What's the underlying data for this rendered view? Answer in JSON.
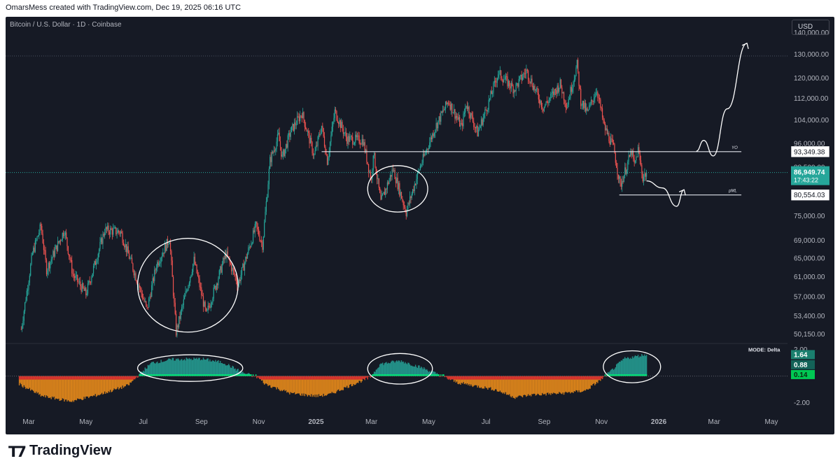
{
  "header": {
    "caption": "OmarsMess created with TradingView.com, Dec 19, 2025 06:16 UTC"
  },
  "chart": {
    "symbol": "Bitcoin / U.S. Dollar · 1D · Coinbase",
    "currency_button": "USD",
    "mode_label": "MODE: Delta",
    "yo_label": "YO",
    "pml_label": "pML",
    "countdown": "17:43:22"
  },
  "footer": {
    "brand": "TradingView"
  },
  "colors": {
    "background": "#161a25",
    "bull": "#26a69a",
    "bear": "#ef5350",
    "text": "#b2b5be",
    "delta_pos": "#26a69a",
    "delta_neg_top": "#d32f2f",
    "delta_neg_body": "#f7931a",
    "signal": "#00e676"
  },
  "chart_data": [
    {
      "type": "candlestick",
      "title": "Bitcoin / U.S. Dollar · 1D · Coinbase",
      "y_scale": "log",
      "ylim": [
        48700,
        146000
      ],
      "y_ticks": [
        50150,
        53400,
        57000,
        61000,
        65000,
        69000,
        75000,
        80500,
        88500,
        96000,
        104000,
        112000,
        120000,
        130000,
        140000
      ],
      "y_tick_labels": [
        "50,150.00",
        "53,400.00",
        "57,000.00",
        "61,000.00",
        "65,000.00",
        "69,000.00",
        "75,000.00",
        "80,500.00",
        "88,500.00",
        "96,000.00",
        "104,000.00",
        "112,000.00",
        "120,000.00",
        "130,000.00",
        "140,000.00"
      ],
      "x_ticks": [
        "Mar",
        "May",
        "Jul",
        "Sep",
        "Nov",
        "2025",
        "Mar",
        "May",
        "Jul",
        "Sep",
        "Nov",
        "2026",
        "Mar",
        "May"
      ],
      "x_tick_dates": [
        "2024-03-01",
        "2024-05-01",
        "2024-07-01",
        "2024-09-01",
        "2024-11-01",
        "2025-01-01",
        "2025-03-01",
        "2025-05-01",
        "2025-07-01",
        "2025-09-01",
        "2025-11-01",
        "2026-01-01",
        "2026-03-01",
        "2026-05-01"
      ],
      "x_range": [
        "2024-02-20",
        "2026-05-25"
      ],
      "price_path": [
        [
          "2024-02-22",
          51000
        ],
        [
          "2024-03-05",
          66000
        ],
        [
          "2024-03-14",
          72500
        ],
        [
          "2024-03-20",
          62500
        ],
        [
          "2024-04-08",
          71500
        ],
        [
          "2024-04-17",
          61500
        ],
        [
          "2024-05-01",
          57500
        ],
        [
          "2024-05-21",
          71500
        ],
        [
          "2024-06-07",
          71000
        ],
        [
          "2024-06-24",
          60500
        ],
        [
          "2024-07-05",
          54500
        ],
        [
          "2024-07-15",
          63500
        ],
        [
          "2024-07-29",
          69500
        ],
        [
          "2024-08-05",
          50500
        ],
        [
          "2024-08-24",
          64500
        ],
        [
          "2024-09-06",
          53500
        ],
        [
          "2024-09-27",
          66000
        ],
        [
          "2024-10-10",
          59500
        ],
        [
          "2024-10-29",
          72500
        ],
        [
          "2024-11-05",
          68000
        ],
        [
          "2024-11-13",
          90500
        ],
        [
          "2024-11-22",
          98500
        ],
        [
          "2024-11-26",
          91500
        ],
        [
          "2024-12-05",
          100000
        ],
        [
          "2024-12-17",
          106500
        ],
        [
          "2024-12-30",
          92000
        ],
        [
          "2025-01-07",
          102000
        ],
        [
          "2025-01-13",
          90500
        ],
        [
          "2025-01-21",
          107000
        ],
        [
          "2025-02-03",
          97500
        ],
        [
          "2025-02-20",
          97000
        ],
        [
          "2025-03-01",
          84500
        ],
        [
          "2025-03-03",
          93500
        ],
        [
          "2025-03-11",
          78500
        ],
        [
          "2025-03-24",
          88000
        ],
        [
          "2025-04-07",
          76000
        ],
        [
          "2025-04-21",
          88000
        ],
        [
          "2025-05-08",
          101500
        ],
        [
          "2025-05-22",
          111000
        ],
        [
          "2025-06-05",
          101500
        ],
        [
          "2025-06-10",
          110000
        ],
        [
          "2025-06-22",
          99500
        ],
        [
          "2025-07-03",
          109500
        ],
        [
          "2025-07-14",
          122000
        ],
        [
          "2025-07-31",
          115500
        ],
        [
          "2025-08-13",
          123000
        ],
        [
          "2025-08-31",
          108500
        ],
        [
          "2025-09-18",
          117500
        ],
        [
          "2025-09-25",
          109000
        ],
        [
          "2025-10-06",
          125500
        ],
        [
          "2025-10-10",
          111000
        ],
        [
          "2025-10-17",
          106500
        ],
        [
          "2025-10-27",
          115500
        ],
        [
          "2025-11-04",
          101500
        ],
        [
          "2025-11-14",
          94500
        ],
        [
          "2025-11-21",
          83000
        ],
        [
          "2025-12-03",
          93500
        ],
        [
          "2025-12-06",
          89000
        ],
        [
          "2025-12-10",
          94000
        ],
        [
          "2025-12-15",
          85500
        ],
        [
          "2025-12-19",
          86949.74
        ]
      ],
      "current_price": 86949.74,
      "levels": [
        {
          "name": "YO",
          "value": 93349.38,
          "label": "93,349.38",
          "from": "2025-01-07",
          "to": "2026-03-30"
        },
        {
          "name": "pML",
          "value": 80554.03,
          "label": "80,554.03",
          "from": "2025-11-20",
          "to": "2026-03-30"
        }
      ],
      "current_label": "86,949.74",
      "countdown": "17:43:22",
      "drawings": [
        {
          "type": "ellipse",
          "around": [
            "2024-06-25",
            "2024-10-10"
          ],
          "price": [
            50500,
            69500
          ]
        },
        {
          "type": "ellipse",
          "around": [
            "2025-02-25",
            "2025-04-30"
          ],
          "price": [
            76000,
            89000
          ]
        },
        {
          "type": "projection",
          "path": [
            [
              "2025-12-19",
              84500
            ],
            [
              "2026-01-05",
              82500
            ],
            [
              "2026-01-20",
              77500
            ],
            [
              "2026-01-28",
              82000
            ]
          ]
        },
        {
          "type": "projection",
          "path": [
            [
              "2026-02-10",
              93500
            ],
            [
              "2026-02-18",
              97000
            ],
            [
              "2026-02-28",
              92000
            ],
            [
              "2026-03-15",
              108000
            ],
            [
              "2026-04-05",
              135000
            ]
          ]
        }
      ]
    },
    {
      "type": "histogram",
      "title": "MODE: Delta",
      "ylim": [
        -2.6,
        2.4
      ],
      "y_ticks": [
        2.0,
        -2.0
      ],
      "y_tick_labels": [
        "2.00",
        "-2.00"
      ],
      "value_labels": [
        "1.64",
        "0.88",
        "0.14"
      ],
      "delta_values": [
        1.64,
        0.88,
        0.14
      ],
      "delta_path": [
        [
          "2024-02-20",
          -0.6
        ],
        [
          "2024-03-15",
          -1.5
        ],
        [
          "2024-04-15",
          -1.9
        ],
        [
          "2024-05-15",
          -1.4
        ],
        [
          "2024-06-15",
          -0.7
        ],
        [
          "2024-06-28",
          0.2
        ],
        [
          "2024-07-10",
          1.0
        ],
        [
          "2024-08-01",
          1.25
        ],
        [
          "2024-09-01",
          1.3
        ],
        [
          "2024-09-25",
          1.0
        ],
        [
          "2024-10-15",
          0.25
        ],
        [
          "2024-10-31",
          -0.1
        ],
        [
          "2024-11-08",
          -0.6
        ],
        [
          "2024-12-05",
          -1.3
        ],
        [
          "2025-01-01",
          -1.5
        ],
        [
          "2025-01-15",
          -1.4
        ],
        [
          "2025-02-10",
          -0.6
        ],
        [
          "2025-02-28",
          -0.1
        ],
        [
          "2025-03-10",
          0.9
        ],
        [
          "2025-04-01",
          1.15
        ],
        [
          "2025-04-25",
          0.6
        ],
        [
          "2025-05-15",
          0.0
        ],
        [
          "2025-06-01",
          -0.5
        ],
        [
          "2025-07-10",
          -1.0
        ],
        [
          "2025-08-01",
          -1.6
        ],
        [
          "2025-08-20",
          -1.4
        ],
        [
          "2025-09-20",
          -1.3
        ],
        [
          "2025-10-15",
          -1.1
        ],
        [
          "2025-10-31",
          -0.3
        ],
        [
          "2025-11-10",
          0.3
        ],
        [
          "2025-11-25",
          1.3
        ],
        [
          "2025-12-19",
          1.64
        ]
      ]
    }
  ]
}
